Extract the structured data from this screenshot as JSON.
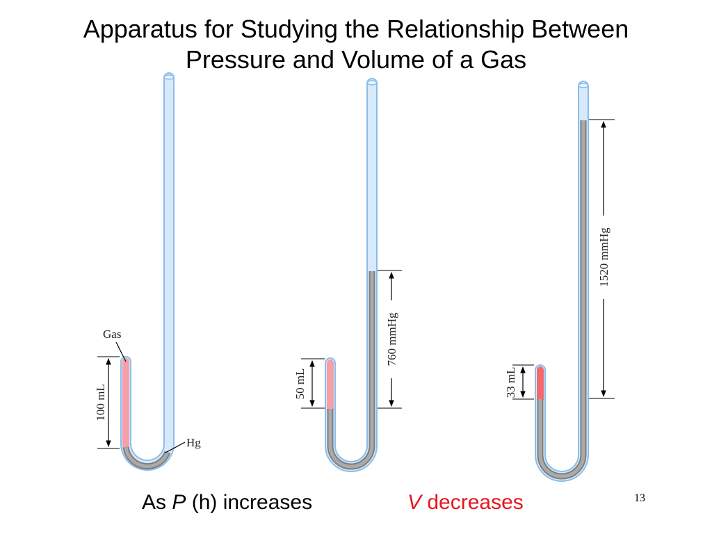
{
  "title": {
    "line1": "Apparatus for Studying the Relationship Between",
    "line2": "Pressure and Volume of a Gas"
  },
  "apparatus_1": {
    "gas_label": "Gas",
    "hg_label": "Hg",
    "volume_label": "100 mL"
  },
  "apparatus_2": {
    "volume_label": "50 mL",
    "pressure_label": "760 mmHg"
  },
  "apparatus_3": {
    "volume_label": "33 mL",
    "pressure_label": "1520 mmHg"
  },
  "colors": {
    "tube_fill": "#d6eafc",
    "tube_stroke": "#8bbde8",
    "gas_1": "#f4a0a6",
    "gas_2": "#f4a0a6",
    "gas_3": "#f26a6e",
    "mercury": "#999999",
    "emphasis": "#e8141c"
  },
  "caption": {
    "left_prefix": "As ",
    "left_var": "P",
    "left_suffix": " (h) increases",
    "right_var": "V",
    "right_suffix": " decreases"
  },
  "page_number": "13"
}
